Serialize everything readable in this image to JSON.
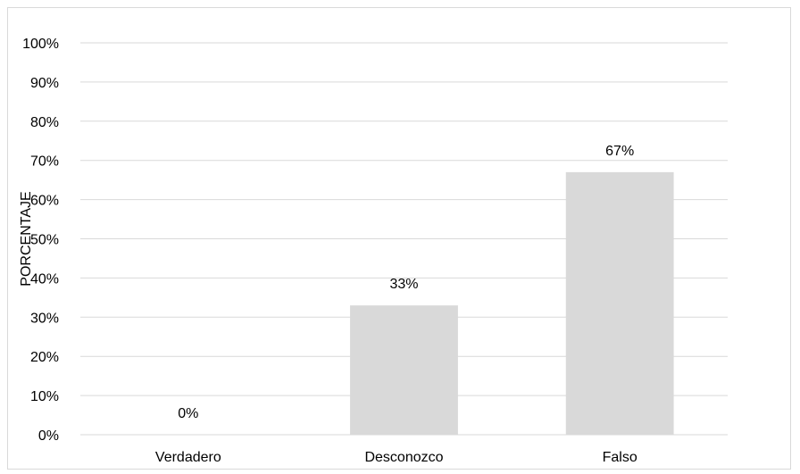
{
  "chart_data": {
    "type": "bar",
    "categories": [
      "Verdadero",
      "Desconozco",
      "Falso"
    ],
    "values": [
      0,
      33,
      67
    ],
    "value_labels": [
      "0%",
      "33%",
      "67%"
    ],
    "title": "",
    "xlabel": "",
    "ylabel": "PORCENTAJE",
    "ylim": [
      0,
      100
    ],
    "yticks": [
      0,
      10,
      20,
      30,
      40,
      50,
      60,
      70,
      80,
      90,
      100
    ],
    "ytick_labels": [
      "0%",
      "10%",
      "20%",
      "30%",
      "40%",
      "50%",
      "60%",
      "70%",
      "80%",
      "90%",
      "100%"
    ],
    "grid": true,
    "legend": "none",
    "bar_color": "#d9d9d9",
    "grid_color": "#d9d9d9"
  }
}
